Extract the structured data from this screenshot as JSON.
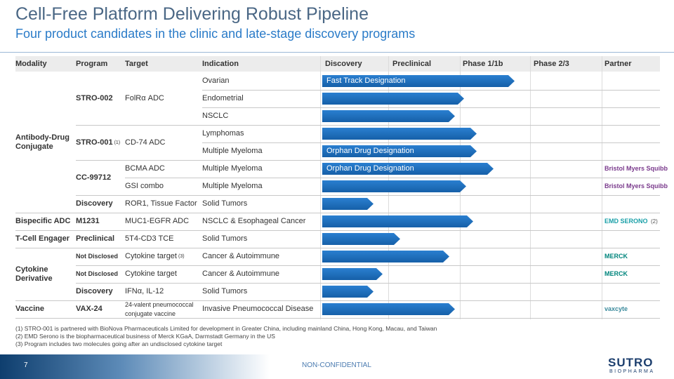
{
  "header": {
    "title": "Cell-Free Platform Delivering Robust Pipeline",
    "subtitle": "Four product candidates in the clinic and late-stage discovery programs"
  },
  "table": {
    "columns": [
      "Modality",
      "Program",
      "Target",
      "Indication",
      "Discovery",
      "Preclinical",
      "Phase 1/1b",
      "Phase 2/3",
      "Partner"
    ],
    "groups": [
      {
        "modality": "Antibody-Drug Conjugate",
        "programs": [
          {
            "program": "STRO-002",
            "targets": [
              {
                "target": "FolRα ADC",
                "indications": [
                  {
                    "name": "Ovarian",
                    "designation": "Fast Track Designation"
                  },
                  {
                    "name": "Endometrial"
                  },
                  {
                    "name": "NSCLC"
                  }
                ]
              }
            ]
          },
          {
            "program": "STRO-001",
            "note": "(1)",
            "targets": [
              {
                "target": "CD-74 ADC",
                "indications": [
                  {
                    "name": "Lymphomas"
                  },
                  {
                    "name": "Multiple Myeloma",
                    "designation": "Orphan Drug Designation"
                  }
                ]
              }
            ]
          },
          {
            "program": "CC-99712",
            "targets": [
              {
                "target": "BCMA ADC",
                "indications": [
                  {
                    "name": "Multiple Myeloma",
                    "designation": "Orphan Drug Designation",
                    "partner": "Bristol Myers Squibb"
                  }
                ]
              },
              {
                "target": "GSI combo",
                "indications": [
                  {
                    "name": "Multiple Myeloma",
                    "partner": "Bristol Myers Squibb"
                  }
                ]
              }
            ]
          },
          {
            "program": "Discovery",
            "targets": [
              {
                "target": "ROR1, Tissue Factor",
                "indications": [
                  {
                    "name": "Solid Tumors"
                  }
                ]
              }
            ]
          }
        ]
      },
      {
        "modality": "Bispecific ADC",
        "programs": [
          {
            "program": "M1231",
            "targets": [
              {
                "target": "MUC1-EGFR ADC",
                "indications": [
                  {
                    "name": "NSCLC & Esophageal Cancer",
                    "partner": "EMD SERONO",
                    "partner_note": "(2)"
                  }
                ]
              }
            ]
          }
        ]
      },
      {
        "modality": "T-Cell Engager",
        "programs": [
          {
            "program": "Preclinical",
            "targets": [
              {
                "target": "5T4-CD3 TCE",
                "indications": [
                  {
                    "name": "Solid Tumors"
                  }
                ]
              }
            ]
          }
        ]
      },
      {
        "modality": "Cytokine Derivative",
        "programs": [
          {
            "program": "Not Disclosed",
            "targets": [
              {
                "target": "Cytokine target",
                "note": "(3)",
                "indications": [
                  {
                    "name": "Cancer & Autoimmune",
                    "partner": "MERCK"
                  }
                ]
              }
            ]
          },
          {
            "program": "Not Disclosed",
            "targets": [
              {
                "target": "Cytokine target",
                "indications": [
                  {
                    "name": "Cancer & Autoimmune",
                    "partner": "MERCK"
                  }
                ]
              }
            ]
          },
          {
            "program": "Discovery",
            "targets": [
              {
                "target": "IFNα, IL-12",
                "indications": [
                  {
                    "name": "Solid Tumors"
                  }
                ]
              }
            ]
          }
        ]
      },
      {
        "modality": "Vaccine",
        "programs": [
          {
            "program": "VAX-24",
            "targets": [
              {
                "target": "24-valent pneumococcal conjugate vaccine",
                "indications": [
                  {
                    "name": "Invasive Pneumococcal Disease",
                    "partner": "vaxcyte"
                  }
                ]
              }
            ]
          }
        ]
      }
    ]
  },
  "footnotes": [
    "(1) STRO-001 is partnered with BioNova Pharmaceuticals Limited for development in Greater China, including mainland China, Hong Kong, Macau, and Taiwan",
    "(2) EMD Serono is the biopharmaceutical business of Merck KGaA, Darmstadt Germany in the US",
    "(3) Program includes two molecules going after an undisclosed cytokine target"
  ],
  "footer": {
    "page": "7",
    "classification": "NON-CONFIDENTIAL",
    "logo_name": "SUTRO",
    "logo_sub": "BIOPHARMA"
  }
}
